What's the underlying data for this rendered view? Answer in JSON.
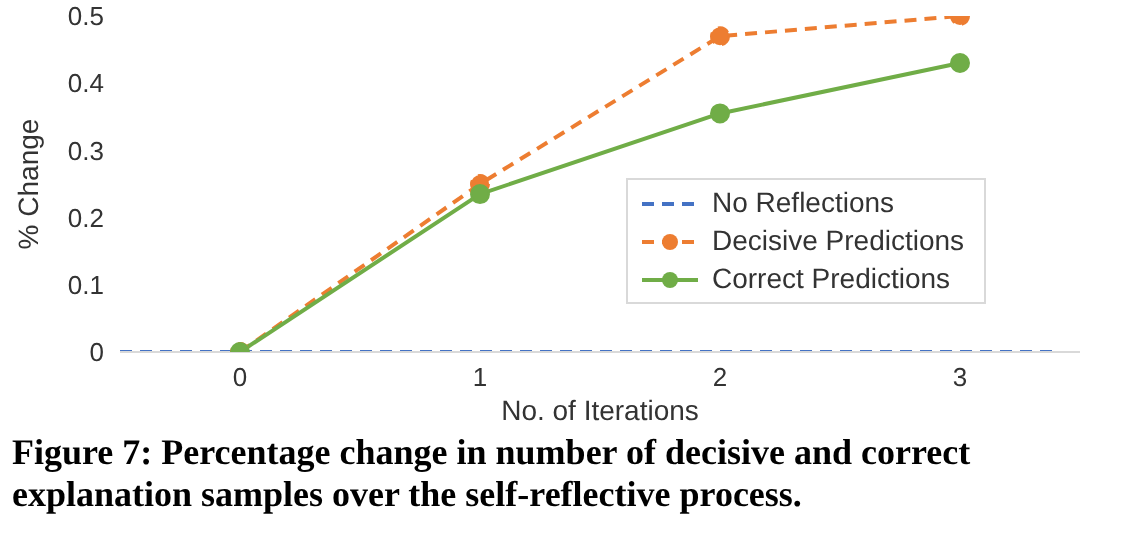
{
  "chart_data": {
    "type": "line",
    "xlabel": "No. of Iterations",
    "ylabel": "% Change",
    "x": [
      0,
      1,
      2,
      3
    ],
    "xlim": [
      -0.5,
      3.5
    ],
    "xticks": [
      0,
      1,
      2,
      3
    ],
    "ylim": [
      0,
      0.5
    ],
    "yticks": [
      0,
      0.1,
      0.2,
      0.3,
      0.4,
      0.5
    ],
    "grid": false,
    "legend": "right",
    "series": [
      {
        "name": "No Reflections",
        "color": "#4472c4",
        "x": [
          -0.5,
          3.4
        ],
        "values": [
          0,
          0
        ],
        "line_style": "dashed",
        "marker": "none"
      },
      {
        "name": "Decisive Predictions",
        "color": "#ed7d31",
        "values": [
          0,
          0.25,
          0.47,
          0.5
        ],
        "line_style": "dashed",
        "marker": "circle"
      },
      {
        "name": "Correct Predictions",
        "color": "#70ad47",
        "values": [
          0,
          0.235,
          0.355,
          0.43
        ],
        "line_style": "solid",
        "marker": "circle"
      }
    ],
    "annotations": [
      "Figure 7: Percentage change in number of decisive and correct explanation samples over the self-reflective process."
    ]
  }
}
